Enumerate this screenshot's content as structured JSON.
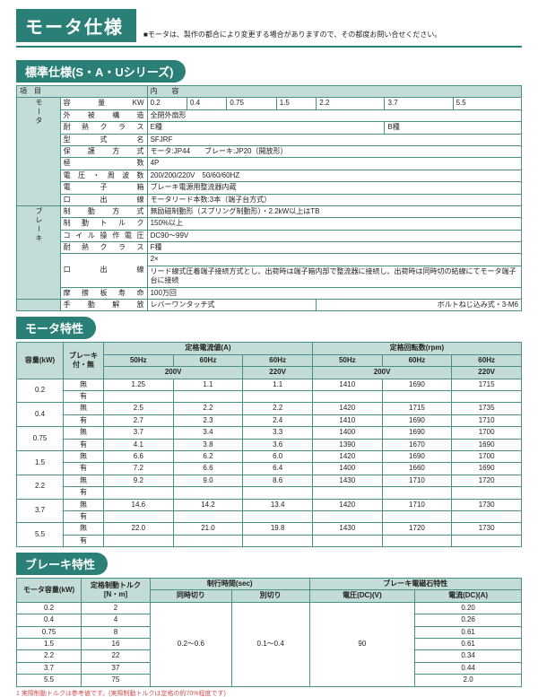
{
  "title": "モータ仕様",
  "title_note": "■モータは、製作の都合により変更する場合がありますので、その都度お問い合せください。",
  "sections": {
    "spec_title": "標準仕様(S・A・Uシリーズ)",
    "motor_char_title": "モータ特性",
    "brake_char_title": "ブレーキ特性"
  },
  "spec": {
    "hdr_item": "項　目",
    "hdr_content": "内　　容",
    "side_motor": "モータ",
    "side_brake": "ブレーキ",
    "kw_label": "容　量　KW",
    "kw_vals": [
      "0.2",
      "0.4",
      "0.75",
      "1.5",
      "2.2",
      "3.7",
      "5.5"
    ],
    "rows1_labels": [
      "外　被　構　造",
      "耐 熱 ク ラ ス",
      "型　式　名",
      "保　護　方　式",
      "極　　　数",
      "電 圧 ・ 周 波 数",
      "電　子　箱",
      "口　出　線",
      "制　動　方　式"
    ],
    "rows1_vals": [
      "全閉外扇形",
      "E種",
      "SFJRF",
      "モータ:JP44　　ブレーキ:JP20（開放形）",
      "4P",
      "200/200/220V　50/60/60HZ",
      "ブレーキ電源用整流器内蔵",
      "モータリード本数:3本（端子台方式）",
      "無励磁制動形（スプリング制動形）・2.2kW以上はTB"
    ],
    "row_b_class": "B種",
    "rows2_labels": [
      "制　動　ト　ル　ク",
      "コ イ ル 操 作 電 圧",
      "耐 熱 ク ラ ス",
      "口　出　線",
      "摩 擦 板 寿 命",
      "手　動　解　放"
    ],
    "rows2_vals": [
      "150%以上",
      "DC90～99V",
      "F種",
      "リード線式圧着端子接続方式とし、出荷時は端子箱内部で整流器に接続し、出荷時は同時切の結線にてモータ端子台に接続",
      "100万回",
      "レバーワンタッチ式"
    ],
    "row_2x": "2×",
    "bolt_note": "ボルトねじ込み式・3-M6"
  },
  "motor_char": {
    "col_cap": "容量(kW)",
    "col_brk": "ブレーキ付・無",
    "col_cur": "定格電流値(A)",
    "col_rpm": "定格回転数(rpm)",
    "sub_50_200": "50Hz",
    "sub_60_200": "60Hz",
    "sub_60_220": "60Hz",
    "v200": "200V",
    "v220": "220V",
    "brk_no": "無",
    "brk_yes": "有",
    "rows": [
      {
        "cap": "0.2",
        "no": [
          "1.25",
          "1.1",
          "1.1",
          "1410",
          "1690",
          "1715"
        ],
        "yes": [
          "",
          "",
          "",
          "",
          "",
          ""
        ]
      },
      {
        "cap": "0.4",
        "no": [
          "2.5",
          "2.2",
          "2.2",
          "1420",
          "1715",
          "1735"
        ],
        "yes": [
          "2.7",
          "2.3",
          "2.4",
          "1410",
          "1690",
          "1710"
        ]
      },
      {
        "cap": "0.75",
        "no": [
          "3.7",
          "3.4",
          "3.3",
          "1400",
          "1690",
          "1700"
        ],
        "yes": [
          "4.1",
          "3.8",
          "3.6",
          "1390",
          "1670",
          "1690"
        ]
      },
      {
        "cap": "1.5",
        "no": [
          "6.6",
          "6.2",
          "6.0",
          "1420",
          "1690",
          "1700"
        ],
        "yes": [
          "7.2",
          "6.6",
          "6.4",
          "1400",
          "1660",
          "1690"
        ]
      },
      {
        "cap": "2.2",
        "no": [
          "9.2",
          "9.0",
          "8.6",
          "1430",
          "1710",
          "1720"
        ],
        "yes": [
          "",
          "",
          "",
          "",
          "",
          ""
        ]
      },
      {
        "cap": "3.7",
        "no": [
          "14.6",
          "14.2",
          "13.4",
          "1420",
          "1710",
          "1730"
        ],
        "yes": [
          "",
          "",
          "",
          "",
          "",
          ""
        ]
      },
      {
        "cap": "5.5",
        "no": [
          "22.0",
          "21.0",
          "19.8",
          "1430",
          "1720",
          "1730"
        ],
        "yes": [
          "",
          "",
          "",
          "",
          "",
          ""
        ]
      }
    ]
  },
  "brake_char": {
    "col_cap": "モータ容量(kW)",
    "col_torque": "定格制動トルク[N・m]",
    "col_time": "制行時間(sec)",
    "col_mag": "ブレーキ電磁石特性",
    "sub_simul": "同時切り",
    "sub_sep": "別切り",
    "sub_vdc": "電圧(DC)(V)",
    "sub_adc": "電流(DC)(A)",
    "time_simul": "0.2～0.6",
    "time_sep": "0.1～0.4",
    "vdc": "90",
    "rows": [
      {
        "c": "0.2",
        "t": "2",
        "a": "0.20"
      },
      {
        "c": "0.4",
        "t": "4",
        "a": "0.26"
      },
      {
        "c": "0.75",
        "t": "8",
        "a": "0.61"
      },
      {
        "c": "1.5",
        "t": "16",
        "a": "0.61"
      },
      {
        "c": "2.2",
        "t": "22",
        "a": "0.34"
      },
      {
        "c": "3.7",
        "t": "37",
        "a": "0.44"
      },
      {
        "c": "5.5",
        "t": "75",
        "a": "2.0"
      }
    ],
    "footnote": "1 実際制動トルクは参考値です。(実際制動トルクは定格の約70%程度です)"
  }
}
